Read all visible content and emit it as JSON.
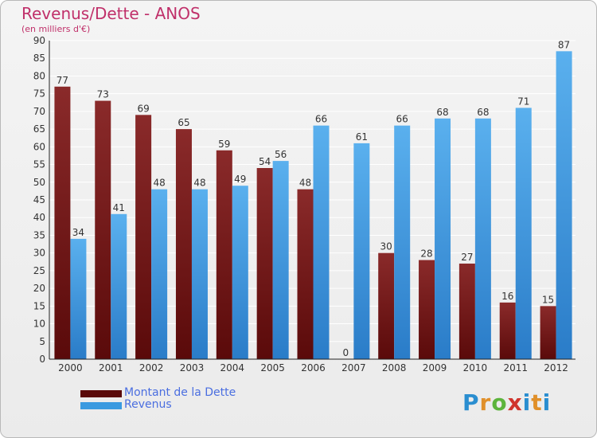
{
  "title": "Revenus/Dette - ANOS",
  "subtitle": "(en milliers d'€)",
  "logo_text": "Proxiti",
  "chart_data": {
    "type": "bar",
    "categories": [
      "2000",
      "2001",
      "2002",
      "2003",
      "2004",
      "2005",
      "2006",
      "2007",
      "2008",
      "2009",
      "2010",
      "2011",
      "2012"
    ],
    "series": [
      {
        "name": "Montant de la Dette",
        "color": "#7a1a1a",
        "values": [
          77,
          73,
          69,
          65,
          59,
          54,
          48,
          0,
          30,
          28,
          27,
          16,
          15
        ]
      },
      {
        "name": "Revenus",
        "color": "#3a9ae0",
        "values": [
          34,
          41,
          48,
          48,
          49,
          56,
          66,
          61,
          66,
          68,
          68,
          71,
          87
        ]
      }
    ],
    "ylim": [
      0,
      90
    ],
    "yticks": [
      0,
      5,
      10,
      15,
      20,
      25,
      30,
      35,
      40,
      45,
      50,
      55,
      60,
      65,
      70,
      75,
      80,
      85,
      90
    ],
    "grid": true,
    "legend_position": "bottom-left"
  }
}
